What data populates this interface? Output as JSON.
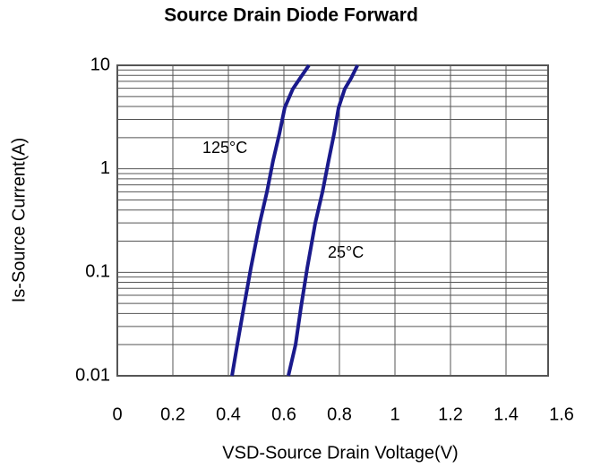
{
  "chart_data": {
    "type": "line",
    "title": "Source Drain Diode Forward",
    "xlabel": "VSD-Source Drain Voltage(V)",
    "ylabel": "Is-Source Current(A)",
    "log_y": true,
    "grid": true,
    "xlim": [
      0,
      1.6
    ],
    "xticks": [
      0,
      0.2,
      0.4,
      0.6,
      0.8,
      1,
      1.2,
      1.4,
      1.6
    ],
    "ylim": [
      0.01,
      10
    ],
    "yticks": [
      0.01,
      0.1,
      1,
      10
    ],
    "y_minor_ticks": [
      0.02,
      0.03,
      0.04,
      0.05,
      0.06,
      0.07,
      0.08,
      0.09,
      0.2,
      0.3,
      0.4,
      0.5,
      0.6,
      0.7,
      0.8,
      0.9,
      2,
      3,
      4,
      5,
      6,
      7,
      8,
      9
    ],
    "series": [
      {
        "name": "125°C",
        "color": "#1a1a8c",
        "x": [
          0.413,
          0.432,
          0.455,
          0.481,
          0.513,
          0.539,
          0.561,
          0.584,
          0.603,
          0.632,
          0.658,
          0.69
        ],
        "values": [
          0.01,
          0.02,
          0.045,
          0.11,
          0.3,
          0.6,
          1.2,
          2.2,
          3.9,
          5.9,
          7.5,
          10
        ]
      },
      {
        "name": "25°C",
        "color": "#1a1a8c",
        "x": [
          0.616,
          0.642,
          0.661,
          0.684,
          0.713,
          0.739,
          0.761,
          0.781,
          0.797,
          0.819,
          0.842,
          0.865
        ],
        "values": [
          0.01,
          0.02,
          0.045,
          0.11,
          0.3,
          0.6,
          1.2,
          2.2,
          3.9,
          5.9,
          7.5,
          10
        ]
      }
    ]
  }
}
